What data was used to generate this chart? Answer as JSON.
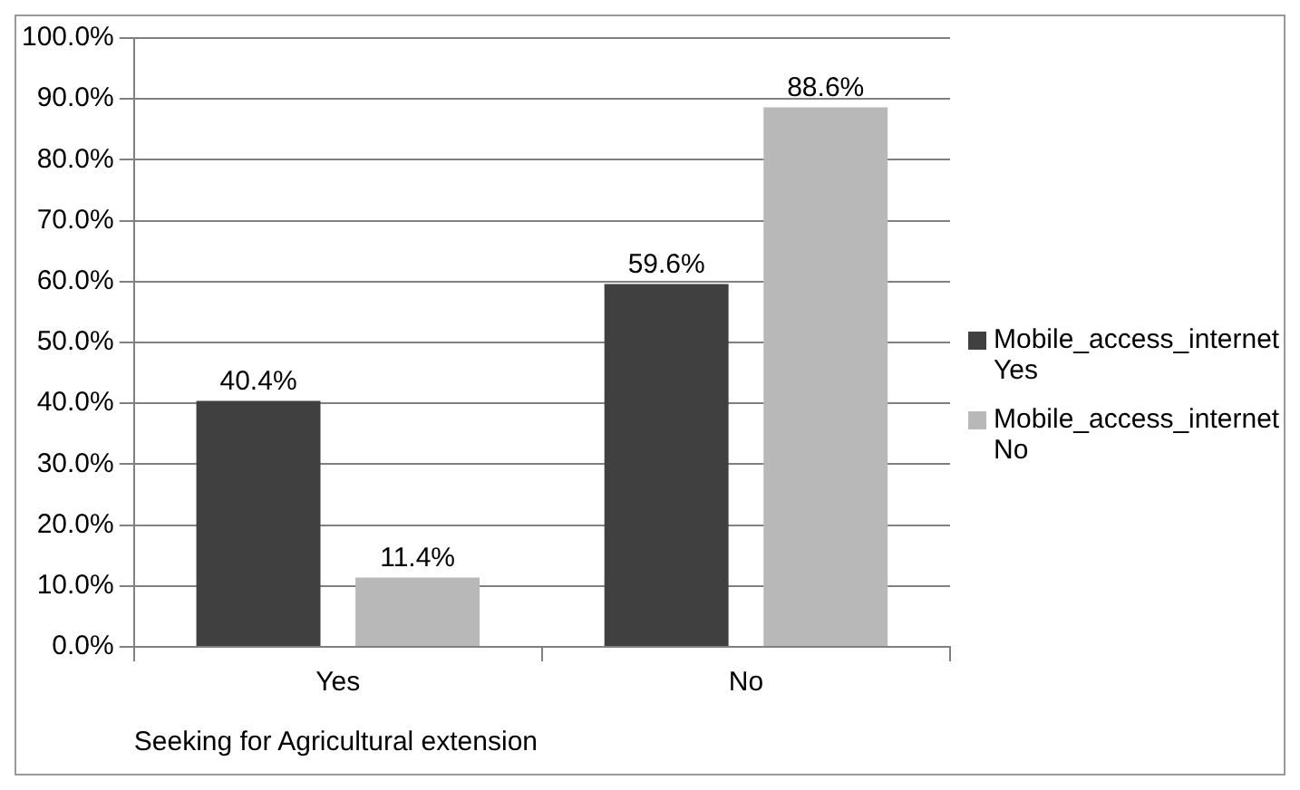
{
  "chart_data": {
    "type": "bar",
    "xlabel": "Seeking for Agricultural extension",
    "categories": [
      "Yes",
      "No"
    ],
    "series": [
      {
        "name": "Mobile_access_internet Yes",
        "color": "#404040",
        "values": [
          40.4,
          59.6
        ],
        "value_labels": [
          "40.4%",
          "59.6%"
        ]
      },
      {
        "name": "Mobile_access_internet No",
        "color": "#b8b8b8",
        "values": [
          11.4,
          88.6
        ],
        "value_labels": [
          "11.4%",
          "88.6%"
        ]
      }
    ],
    "ylim": [
      0,
      100
    ],
    "yticks": [
      {
        "value": 0,
        "label": "0.0%"
      },
      {
        "value": 10,
        "label": "10.0%"
      },
      {
        "value": 20,
        "label": "20.0%"
      },
      {
        "value": 30,
        "label": "30.0%"
      },
      {
        "value": 40,
        "label": "40.0%"
      },
      {
        "value": 50,
        "label": "50.0%"
      },
      {
        "value": 60,
        "label": "60.0%"
      },
      {
        "value": 70,
        "label": "70.0%"
      },
      {
        "value": 80,
        "label": "80.0%"
      },
      {
        "value": 90,
        "label": "90.0%"
      },
      {
        "value": 100,
        "label": "100.0%"
      }
    ],
    "grid": "y",
    "legend": "right"
  }
}
